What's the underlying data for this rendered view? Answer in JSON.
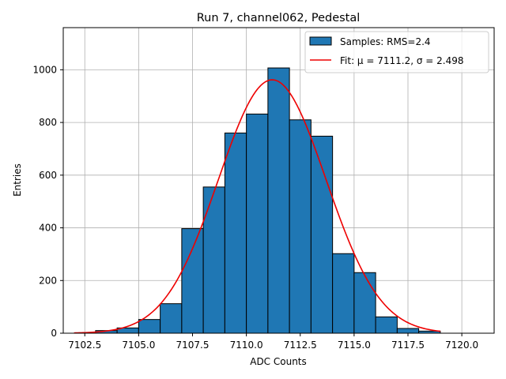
{
  "chart_data": {
    "type": "bar",
    "title": "Run 7, channel062, Pedestal",
    "xlabel": "ADC Counts",
    "ylabel": "Entries",
    "xlim": [
      7101.5,
      7121.5
    ],
    "ylim": [
      0,
      1160
    ],
    "grid": true,
    "legend_position": "top-right",
    "bin_width": 1,
    "bins": [
      {
        "left": 7103,
        "value": 10
      },
      {
        "left": 7104,
        "value": 20
      },
      {
        "left": 7105,
        "value": 52
      },
      {
        "left": 7106,
        "value": 112
      },
      {
        "left": 7107,
        "value": 397
      },
      {
        "left": 7108,
        "value": 555
      },
      {
        "left": 7109,
        "value": 760
      },
      {
        "left": 7110,
        "value": 832
      },
      {
        "left": 7111,
        "value": 1007
      },
      {
        "left": 7112,
        "value": 810
      },
      {
        "left": 7113,
        "value": 748
      },
      {
        "left": 7114,
        "value": 302
      },
      {
        "left": 7115,
        "value": 230
      },
      {
        "left": 7116,
        "value": 62
      },
      {
        "left": 7117,
        "value": 18
      },
      {
        "left": 7118,
        "value": 8
      }
    ],
    "fit": {
      "mu": 7111.2,
      "sigma": 2.498,
      "amplitude": 962,
      "x_range": [
        7102,
        7119
      ]
    },
    "x_ticks": [
      "7102.5",
      "7105.0",
      "7107.5",
      "7110.0",
      "7112.5",
      "7115.0",
      "7117.5",
      "7120.0"
    ],
    "y_ticks": [
      "0",
      "200",
      "400",
      "600",
      "800",
      "1000"
    ],
    "legend": {
      "samples_label": "Samples: RMS=2.4",
      "fit_label": "Fit: μ = 7111.2, σ = 2.498"
    },
    "colors": {
      "bars": "#1f77b4",
      "fit": "#ee0000",
      "grid": "#b0b0b0"
    }
  }
}
